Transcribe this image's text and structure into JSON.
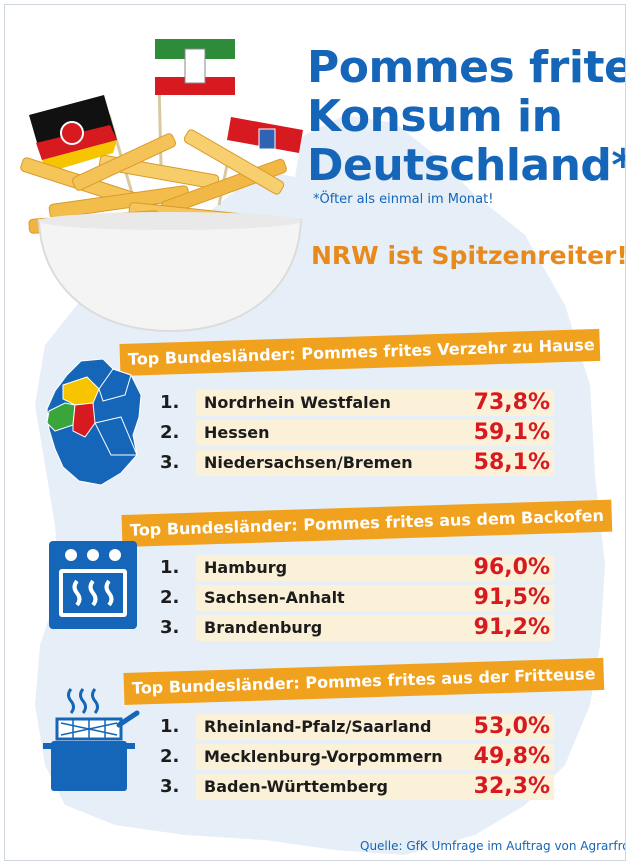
{
  "title_lines": [
    "Pommes frites",
    "Konsum in",
    "Deutschland*:"
  ],
  "footnote": "*Öfter als einmal im Monat!",
  "headline": "NRW ist Spitzenreiter!",
  "source": "Quelle: GfK Umfrage im Auftrag von Agrarfrost",
  "icons": {
    "section1": "germany-map-icon",
    "section2": "oven-icon",
    "section3": "fryer-pot-icon",
    "hero": "fries-bowl-with-flags"
  },
  "colors": {
    "title": "#1565b8",
    "banner": "#f0a21f",
    "headline": "#e8891c",
    "value": "#d71920",
    "row_bg": "#fbf1d8",
    "map_bg": "#e6eef7"
  },
  "chart_data": [
    {
      "type": "table",
      "title": "Top Bundesländer: Pommes frites Verzehr zu Hause",
      "rows": [
        {
          "rank": "1.",
          "name": "Nordrhein Westfalen",
          "value_label": "73,8%",
          "value": 73.8
        },
        {
          "rank": "2.",
          "name": "Hessen",
          "value_label": "59,1%",
          "value": 59.1
        },
        {
          "rank": "3.",
          "name": "Niedersachsen/Bremen",
          "value_label": "58,1%",
          "value": 58.1
        }
      ]
    },
    {
      "type": "table",
      "title": "Top Bundesländer: Pommes frites aus dem Backofen",
      "rows": [
        {
          "rank": "1.",
          "name": "Hamburg",
          "value_label": "96,0%",
          "value": 96.0
        },
        {
          "rank": "2.",
          "name": "Sachsen-Anhalt",
          "value_label": "91,5%",
          "value": 91.5
        },
        {
          "rank": "3.",
          "name": "Brandenburg",
          "value_label": "91,2%",
          "value": 91.2
        }
      ]
    },
    {
      "type": "table",
      "title": "Top Bundesländer: Pommes frites aus der Fritteuse",
      "rows": [
        {
          "rank": "1.",
          "name": "Rheinland-Pfalz/Saarland",
          "value_label": "53,0%",
          "value": 53.0
        },
        {
          "rank": "2.",
          "name": "Mecklenburg-Vorpommern",
          "value_label": "49,8%",
          "value": 49.8
        },
        {
          "rank": "3.",
          "name": "Baden-Württemberg",
          "value_label": "32,3%",
          "value": 32.3
        }
      ]
    }
  ]
}
